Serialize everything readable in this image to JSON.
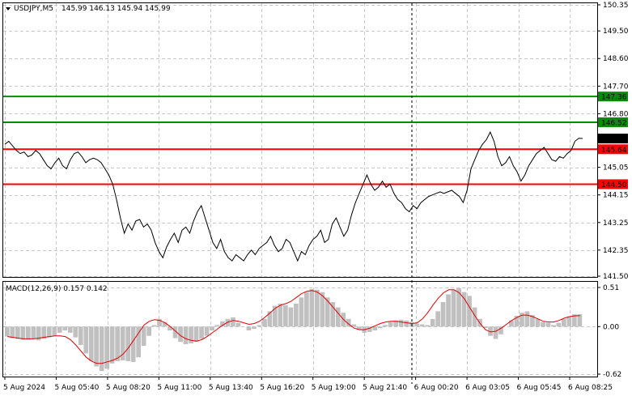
{
  "header": {
    "symbol_label": "USDJPY,M5",
    "ohlc_text": "145.99 146.13 145.94 145.99"
  },
  "macd_panel": {
    "label": "MACD(12,26,9) 0.157 0.142"
  },
  "colors": {
    "price_line": "#000000",
    "grid": "#c8c8c8",
    "resistance_green": "#0a8a0a",
    "support_red": "#ff0000",
    "macd_hist": "#c0c0c0",
    "macd_signal": "#e00000",
    "current_price_tag": "#000000"
  },
  "chart_data": [
    {
      "type": "line",
      "title": "USDJPY,M5",
      "ylim": [
        141.5,
        150.35
      ],
      "y_ticks": [
        "150.35",
        "149.50",
        "148.60",
        "147.70",
        "146.80",
        "145.05",
        "144.15",
        "143.25",
        "142.35",
        "141.50"
      ],
      "x_tick_labels": [
        "5 Aug 2024",
        "5 Aug 05:40",
        "5 Aug 08:20",
        "5 Aug 11:00",
        "5 Aug 13:40",
        "5 Aug 16:20",
        "5 Aug 19:00",
        "5 Aug 21:40",
        "6 Aug 00:20",
        "6 Aug 03:05",
        "6 Aug 05:45",
        "6 Aug 08:25"
      ],
      "horizontal_levels": [
        {
          "label": "147.36",
          "value": 147.36,
          "color": "green"
        },
        {
          "label": "146.52",
          "value": 146.52,
          "color": "green"
        },
        {
          "label": "145.64",
          "value": 145.64,
          "color": "red"
        },
        {
          "label": "144.50",
          "value": 144.5,
          "color": "red"
        }
      ],
      "current_price": {
        "label": "145.99",
        "value": 145.99
      },
      "grid": true,
      "series": [
        {
          "values": [
            145.8,
            145.9,
            145.75,
            145.6,
            145.5,
            145.55,
            145.4,
            145.45,
            145.6,
            145.5,
            145.3,
            145.1,
            145.0,
            145.2,
            145.35,
            145.1,
            145.0,
            145.3,
            145.5,
            145.55,
            145.4,
            145.2,
            145.3,
            145.35,
            145.3,
            145.2,
            145.0,
            144.8,
            144.5,
            144.0,
            143.4,
            142.9,
            143.2,
            143.0,
            143.3,
            143.35,
            143.1,
            143.2,
            143.0,
            142.6,
            142.3,
            142.1,
            142.45,
            142.7,
            142.9,
            142.6,
            143.0,
            143.1,
            142.9,
            143.3,
            143.6,
            143.8,
            143.4,
            143.0,
            142.6,
            142.4,
            142.7,
            142.3,
            142.1,
            142.0,
            142.2,
            142.1,
            142.0,
            142.2,
            142.35,
            142.2,
            142.4,
            142.5,
            142.6,
            142.8,
            142.5,
            142.3,
            142.4,
            142.7,
            142.6,
            142.3,
            142.0,
            142.3,
            142.2,
            142.5,
            142.7,
            142.8,
            143.0,
            142.6,
            142.7,
            143.2,
            143.4,
            143.1,
            142.8,
            143.0,
            143.5,
            143.9,
            144.2,
            144.5,
            144.8,
            144.5,
            144.3,
            144.4,
            144.6,
            144.4,
            144.5,
            144.2,
            144.0,
            143.9,
            143.7,
            143.6,
            143.8,
            143.7,
            143.9,
            144.0,
            144.1,
            144.15,
            144.2,
            144.25,
            144.2,
            144.25,
            144.3,
            144.2,
            144.1,
            143.9,
            144.3,
            145.0,
            145.3,
            145.6,
            145.8,
            145.95,
            146.2,
            145.9,
            145.4,
            145.1,
            145.2,
            145.4,
            145.1,
            144.9,
            144.6,
            144.8,
            145.1,
            145.3,
            145.5,
            145.6,
            145.7,
            145.5,
            145.3,
            145.25,
            145.4,
            145.35,
            145.5,
            145.6,
            145.9,
            146.0,
            145.99
          ]
        }
      ]
    },
    {
      "type": "bar",
      "title": "MACD(12,26,9) 0.157 0.142",
      "ylim": [
        -0.62,
        0.51
      ],
      "y_ticks": [
        "0.51",
        "0.00",
        "-0.62"
      ],
      "grid": true,
      "series": [
        {
          "values": [
            -0.13,
            -0.15,
            -0.16,
            -0.17,
            -0.17,
            -0.16,
            -0.18,
            -0.16,
            -0.14,
            -0.12,
            -0.08,
            -0.05,
            -0.08,
            -0.14,
            -0.24,
            -0.35,
            -0.45,
            -0.52,
            -0.58,
            -0.55,
            -0.48,
            -0.45,
            -0.44,
            -0.45,
            -0.46,
            -0.4,
            -0.25,
            -0.12,
            0.02,
            0.1,
            0.06,
            -0.05,
            -0.15,
            -0.2,
            -0.23,
            -0.22,
            -0.2,
            -0.16,
            -0.12,
            -0.05,
            0.02,
            0.07,
            0.1,
            0.12,
            0.05,
            0.0,
            -0.05,
            -0.03,
            0.02,
            0.1,
            0.2,
            0.27,
            0.3,
            0.28,
            0.25,
            0.3,
            0.38,
            0.45,
            0.49,
            0.48,
            0.45,
            0.38,
            0.32,
            0.25,
            0.18,
            0.1,
            0.03,
            -0.04,
            -0.08,
            -0.07,
            -0.05,
            -0.02,
            0.02,
            0.06,
            0.08,
            0.09,
            0.08,
            0.06,
            0.04,
            0.03,
            0.02,
            0.1,
            0.2,
            0.32,
            0.42,
            0.48,
            0.5,
            0.45,
            0.4,
            0.25,
            0.1,
            -0.02,
            -0.12,
            -0.16,
            -0.1,
            0.0,
            0.08,
            0.14,
            0.18,
            0.2,
            0.15,
            0.1,
            0.06,
            0.05,
            0.02,
            0.05,
            0.1,
            0.13,
            0.16,
            0.16
          ]
        },
        {
          "values": [
            -0.13,
            -0.14,
            -0.15,
            -0.16,
            -0.16,
            -0.16,
            -0.15,
            -0.14,
            -0.13,
            -0.12,
            -0.12,
            -0.13,
            -0.17,
            -0.24,
            -0.32,
            -0.4,
            -0.45,
            -0.48,
            -0.48,
            -0.46,
            -0.44,
            -0.41,
            -0.36,
            -0.28,
            -0.18,
            -0.08,
            0.02,
            0.07,
            0.09,
            0.08,
            0.05,
            0.0,
            -0.06,
            -0.12,
            -0.16,
            -0.18,
            -0.19,
            -0.17,
            -0.13,
            -0.08,
            -0.03,
            0.02,
            0.06,
            0.08,
            0.07,
            0.05,
            0.03,
            0.04,
            0.07,
            0.12,
            0.18,
            0.24,
            0.28,
            0.3,
            0.33,
            0.38,
            0.43,
            0.46,
            0.47,
            0.45,
            0.4,
            0.33,
            0.25,
            0.17,
            0.09,
            0.03,
            -0.02,
            -0.04,
            -0.04,
            -0.02,
            0.01,
            0.04,
            0.06,
            0.07,
            0.07,
            0.06,
            0.05,
            0.04,
            0.05,
            0.1,
            0.18,
            0.28,
            0.37,
            0.44,
            0.48,
            0.48,
            0.44,
            0.36,
            0.25,
            0.14,
            0.04,
            -0.04,
            -0.07,
            -0.06,
            -0.02,
            0.03,
            0.08,
            0.12,
            0.15,
            0.15,
            0.13,
            0.1,
            0.07,
            0.06,
            0.06,
            0.08,
            0.11,
            0.13,
            0.14,
            0.142
          ]
        }
      ]
    }
  ]
}
